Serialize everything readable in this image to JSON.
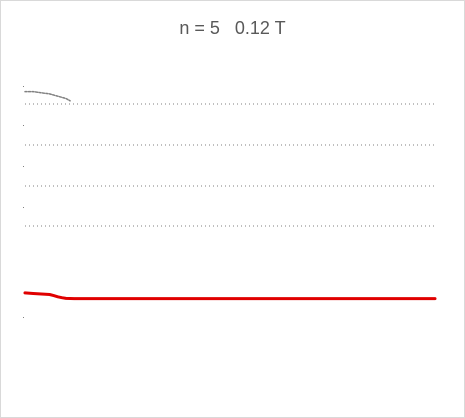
{
  "chart_data": {
    "type": "line",
    "title": "n = 5   0.12 T",
    "xlabel": "",
    "ylabel": "",
    "grid": true,
    "legend": "none",
    "gridline_count": 4,
    "series": [
      {
        "color": "#e00000",
        "x": [
          0,
          0.02,
          0.04,
          0.06,
          0.07,
          0.08,
          0.09,
          0.1,
          0.12,
          0.15,
          0.2,
          0.3,
          0.5,
          0.7,
          0.9,
          1.0
        ],
        "y": [
          0.105,
          0.102,
          0.1,
          0.098,
          0.093,
          0.088,
          0.084,
          0.081,
          0.08,
          0.08,
          0.08,
          0.08,
          0.08,
          0.08,
          0.08,
          0.08
        ]
      },
      {
        "color": "#808080",
        "x": [
          0,
          0.02,
          0.04,
          0.06,
          0.08,
          0.1,
          0.11
        ],
        "y": [
          0.98,
          0.98,
          0.975,
          0.97,
          0.96,
          0.95,
          0.94
        ]
      }
    ],
    "xlim": [
      0,
      1
    ],
    "ylim": [
      0,
      1.1
    ]
  }
}
